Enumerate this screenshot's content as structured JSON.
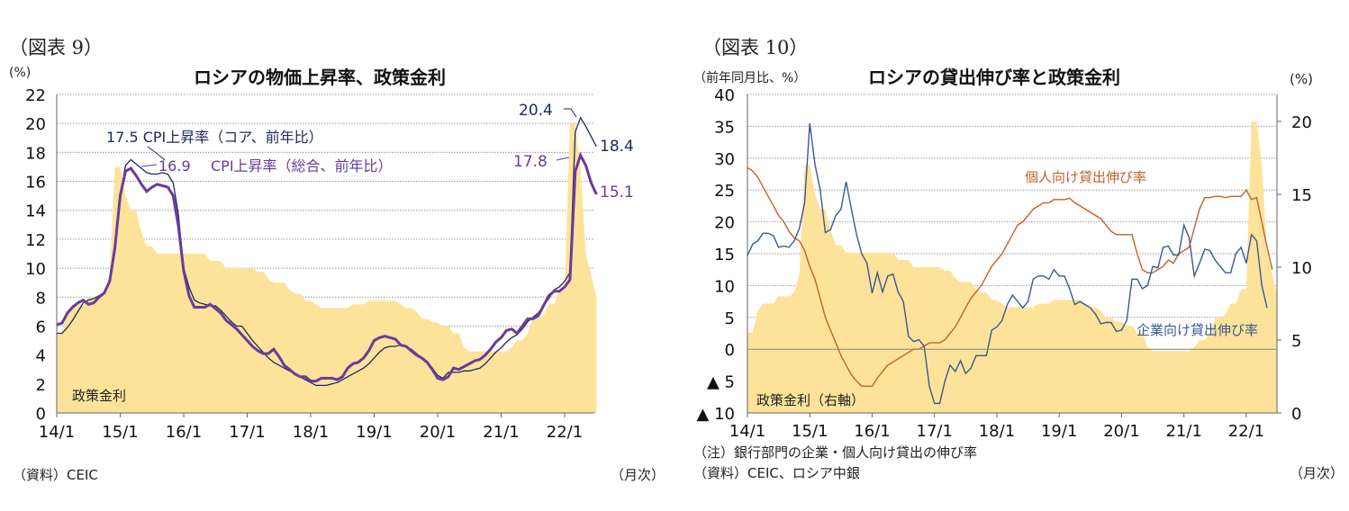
{
  "chart_data": [
    {
      "type": "line",
      "figure_label": "（図表 9）",
      "title": "ロシアの物価上昇率、政策金利",
      "ylabel": "(%)",
      "xunit_label": "（月次）",
      "source": "（資料）CEIC",
      "x_start": "2014-01",
      "x_frequency": "monthly",
      "xtick_labels": [
        "14/1",
        "15/1",
        "16/1",
        "17/1",
        "18/1",
        "19/1",
        "20/1",
        "21/1",
        "22/1"
      ],
      "ylim": [
        0,
        22
      ],
      "yticks": [
        0,
        2,
        4,
        6,
        8,
        10,
        12,
        14,
        16,
        18,
        20,
        22
      ],
      "ytick_labels": [
        "0",
        "2",
        "4",
        "6",
        "8",
        "10",
        "12",
        "14",
        "16",
        "18",
        "20",
        "22"
      ],
      "grid": true,
      "colors": {
        "area": "#fde39a",
        "core": "#1c2a5c",
        "headline": "#6a3a9c"
      },
      "series": [
        {
          "name": "政策金利",
          "kind": "area",
          "values": [
            5.5,
            5.5,
            7,
            7.5,
            7.5,
            7.5,
            8,
            8,
            8,
            8.25,
            9.5,
            17,
            17,
            15,
            14,
            14,
            12.5,
            11.5,
            11.5,
            11,
            11,
            11,
            11,
            11,
            11,
            11,
            11,
            11,
            11,
            10.5,
            10.5,
            10.5,
            10,
            10,
            10,
            10,
            10,
            10,
            9.75,
            9.75,
            9.25,
            9,
            9,
            9,
            8.5,
            8.25,
            8.25,
            7.75,
            7.75,
            7.5,
            7.25,
            7.25,
            7.25,
            7.25,
            7.25,
            7.25,
            7.5,
            7.5,
            7.5,
            7.75,
            7.75,
            7.75,
            7.75,
            7.75,
            7.75,
            7.5,
            7.25,
            7.25,
            7,
            6.5,
            6.5,
            6.25,
            6.25,
            6,
            6,
            5.5,
            5.5,
            4.5,
            4.25,
            4.25,
            4.25,
            4.25,
            4.25,
            4.25,
            4.25,
            4.25,
            4.5,
            5,
            5,
            5.5,
            6.5,
            6.5,
            6.75,
            7.5,
            7.5,
            8.5,
            8.5,
            20,
            20,
            17,
            11,
            9.5,
            8
          ]
        },
        {
          "name": "CPI上昇率（コア、前年比）",
          "kind": "line",
          "values": [
            5.5,
            5.5,
            5.9,
            6.4,
            7.0,
            7.6,
            7.8,
            7.9,
            8.1,
            8.3,
            9.0,
            11.2,
            15.0,
            17.1,
            17.5,
            17.2,
            16.9,
            16.6,
            16.5,
            16.5,
            16.6,
            16.5,
            15.9,
            13.7,
            10.0,
            8.7,
            7.8,
            7.6,
            7.5,
            7.4,
            7.4,
            7.1,
            6.7,
            6.3,
            6.0,
            6.0,
            5.5,
            5.0,
            4.6,
            4.2,
            3.8,
            3.5,
            3.3,
            3.1,
            2.9,
            2.7,
            2.5,
            2.3,
            2.1,
            1.9,
            1.9,
            1.9,
            2.0,
            2.1,
            2.3,
            2.5,
            2.7,
            2.9,
            3.1,
            3.4,
            3.8,
            4.2,
            4.5,
            4.6,
            4.6,
            4.7,
            4.6,
            4.4,
            4.1,
            3.8,
            3.5,
            3.1,
            2.6,
            2.4,
            2.8,
            2.8,
            2.8,
            2.9,
            2.9,
            3.0,
            3.1,
            3.4,
            3.8,
            4.2,
            4.5,
            4.9,
            5.2,
            5.4,
            5.8,
            6.3,
            6.6,
            6.9,
            7.4,
            7.9,
            8.5,
            8.7,
            9.1,
            9.7,
            19.4,
            20.4,
            19.8,
            19.1,
            18.4
          ]
        },
        {
          "name": "CPI上昇率（総合、前年比）",
          "kind": "line",
          "values": [
            6.1,
            6.2,
            6.9,
            7.3,
            7.6,
            7.8,
            7.5,
            7.6,
            8.0,
            8.3,
            9.1,
            11.4,
            15.0,
            16.7,
            16.9,
            16.4,
            15.8,
            15.3,
            15.6,
            15.8,
            15.7,
            15.6,
            15.0,
            12.9,
            9.8,
            8.1,
            7.3,
            7.3,
            7.3,
            7.5,
            7.2,
            6.9,
            6.4,
            6.1,
            5.8,
            5.4,
            5.0,
            4.6,
            4.3,
            4.1,
            4.1,
            4.4,
            3.9,
            3.3,
            3.0,
            2.7,
            2.5,
            2.5,
            2.2,
            2.2,
            2.4,
            2.4,
            2.4,
            2.3,
            2.5,
            3.1,
            3.4,
            3.5,
            3.8,
            4.3,
            5.0,
            5.2,
            5.3,
            5.2,
            5.1,
            4.7,
            4.6,
            4.3,
            4.0,
            3.8,
            3.5,
            3.0,
            2.4,
            2.3,
            2.5,
            3.1,
            3.0,
            3.2,
            3.4,
            3.6,
            3.7,
            4.0,
            4.4,
            4.9,
            5.2,
            5.7,
            5.8,
            5.5,
            6.0,
            6.5,
            6.5,
            6.7,
            7.4,
            8.1,
            8.4,
            8.4,
            8.7,
            9.2,
            16.7,
            17.8,
            17.1,
            15.9,
            15.1
          ]
        }
      ],
      "annotations": {
        "core_peak_2015": "17.5",
        "core_legend": "CPI上昇率（コア、前年比）",
        "headline_peak_2015": "16.9",
        "headline_legend": "CPI上昇率（総合、前年比）",
        "core_peak_2022": "20.4",
        "core_last": "18.4",
        "headline_peak_2022": "17.8",
        "headline_last": "15.1",
        "area_label": "政策金利"
      }
    },
    {
      "type": "line",
      "figure_label": "（図表 10）",
      "title": "ロシアの貸出伸び率と政策金利",
      "ylabel": "（前年同月比、%）",
      "y2label": "(%)",
      "xunit_label": "（月次）",
      "note": "（注）銀行部門の企業・個人向け貸出の伸び率",
      "source": "（資料）CEIC、ロシア中銀",
      "x_start": "2014-01",
      "x_frequency": "monthly",
      "xtick_labels": [
        "14/1",
        "15/1",
        "16/1",
        "17/1",
        "18/1",
        "19/1",
        "20/1",
        "21/1",
        "22/1"
      ],
      "ylim": [
        -10,
        40
      ],
      "yticks": [
        -10,
        -5,
        0,
        5,
        10,
        15,
        20,
        25,
        30,
        35,
        40
      ],
      "ytick_labels": [
        "▲ 10",
        "▲ 5",
        "0",
        "5",
        "10",
        "15",
        "20",
        "25",
        "30",
        "35",
        "40"
      ],
      "y2lim": [
        0,
        21.85
      ],
      "y2ticks": [
        0,
        5,
        10,
        15,
        20
      ],
      "y2tick_labels": [
        "0",
        "5",
        "10",
        "15",
        "20"
      ],
      "grid": true,
      "colors": {
        "area": "#fde39a",
        "personal": "#c0622a",
        "corporate": "#3a5893"
      },
      "series": [
        {
          "name": "政策金利（右軸）",
          "kind": "area",
          "axis": "right",
          "source_series": "same as 図表9 政策金利"
        },
        {
          "name": "個人向け貸出伸び率",
          "kind": "line",
          "axis": "left",
          "values": [
            28.5,
            28,
            27,
            25.5,
            24,
            22.5,
            21,
            20,
            18.5,
            17.5,
            17,
            15.5,
            13,
            11,
            8,
            5,
            3,
            1,
            -1,
            -2.5,
            -4,
            -5,
            -5.8,
            -5.8,
            -5.8,
            -4.5,
            -3.5,
            -2.5,
            -2,
            -1.5,
            -1,
            -0.5,
            0,
            0,
            0.5,
            1,
            1,
            1,
            1.5,
            2.5,
            3.5,
            5,
            6.5,
            8,
            9,
            10,
            11.5,
            13,
            14,
            15,
            16.5,
            18,
            19.5,
            20,
            21,
            22,
            22.5,
            23,
            23,
            23.5,
            23.5,
            23.5,
            23.7,
            23,
            22.5,
            22,
            21.5,
            21,
            20.5,
            19.5,
            18.5,
            18,
            18,
            18,
            18,
            15,
            12.5,
            12,
            12,
            12.5,
            13,
            14,
            13.5,
            15,
            15.5,
            16,
            19,
            22,
            23.8,
            23.8,
            24,
            24,
            23.8,
            24,
            24,
            24,
            25,
            23.5,
            23.8,
            20,
            16,
            12.5
          ]
        },
        {
          "name": "企業向け貸出伸び率",
          "kind": "line",
          "axis": "left",
          "values": [
            14.7,
            16.5,
            17,
            18.2,
            18.2,
            17.8,
            16,
            16.2,
            16,
            17,
            19,
            23,
            35.5,
            29,
            25,
            18.3,
            18.8,
            21,
            22,
            26.3,
            22,
            18,
            15,
            13.5,
            8.8,
            12,
            9,
            11.5,
            11.8,
            9,
            7.5,
            2,
            1.2,
            1.5,
            0.5,
            -5.8,
            -8.5,
            -8.5,
            -5,
            -2.5,
            -3.5,
            -1.8,
            -3.8,
            -3,
            -1,
            -1,
            -1,
            3,
            3.5,
            4.5,
            7,
            8.5,
            7.5,
            6.5,
            7.5,
            11,
            11.5,
            11.5,
            11,
            12.5,
            11.5,
            11.5,
            9.5,
            7,
            7.5,
            7,
            6.5,
            5.5,
            4,
            4.2,
            4.2,
            2.8,
            3,
            4.5,
            11,
            11,
            9.5,
            10,
            13,
            12.8,
            16,
            16.2,
            14.8,
            14.8,
            19.5,
            17.5,
            11.5,
            13.5,
            15.7,
            15.5,
            14,
            13,
            12,
            12,
            15,
            16,
            13.5,
            18,
            17,
            10,
            6.5
          ]
        }
      ],
      "annotations": {
        "personal_label": "個人向け貸出伸び率",
        "corporate_label": "企業向け貸出伸び率",
        "area_label": "政策金利（右軸）"
      }
    }
  ]
}
